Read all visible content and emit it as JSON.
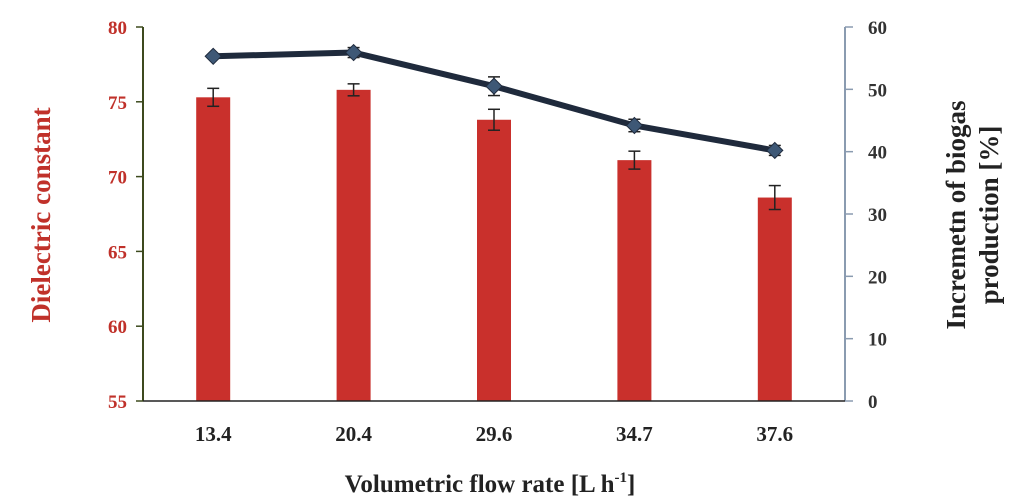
{
  "chart_data": {
    "type": "bar+line",
    "categories": [
      "13.4",
      "20.4",
      "29.6",
      "34.7",
      "37.6"
    ],
    "xlabel": "Volumetric flow rate [L h",
    "xlabel_sup": "-1",
    "xlabel_end": "]",
    "ylabel_left": "Dielectric constant",
    "ylabel_right_line1": "Incremetn of biogas",
    "ylabel_right_line2": "production  [%]",
    "ylim_left": [
      55,
      80
    ],
    "yticks_left": [
      "55",
      "60",
      "65",
      "70",
      "75",
      "80"
    ],
    "ylim_right": [
      0,
      60
    ],
    "yticks_right": [
      "0",
      "10",
      "20",
      "30",
      "40",
      "50",
      "60"
    ],
    "grid": false,
    "legend": "none",
    "bars": {
      "axis": "left",
      "color": "#c9302c",
      "values": [
        75.3,
        75.8,
        73.8,
        71.1,
        68.6
      ],
      "errors": [
        0.6,
        0.4,
        0.7,
        0.6,
        0.8
      ]
    },
    "line": {
      "axis": "right",
      "color": "#1f2a3c",
      "marker_color": "#3e5876",
      "values": [
        55.3,
        55.9,
        50.5,
        44.2,
        40.2
      ],
      "errors": [
        0.0,
        0.8,
        1.5,
        1.0,
        0.8
      ]
    },
    "left_axis_color": "#3d4a1e",
    "right_axis_color": "#8a9bb0"
  }
}
